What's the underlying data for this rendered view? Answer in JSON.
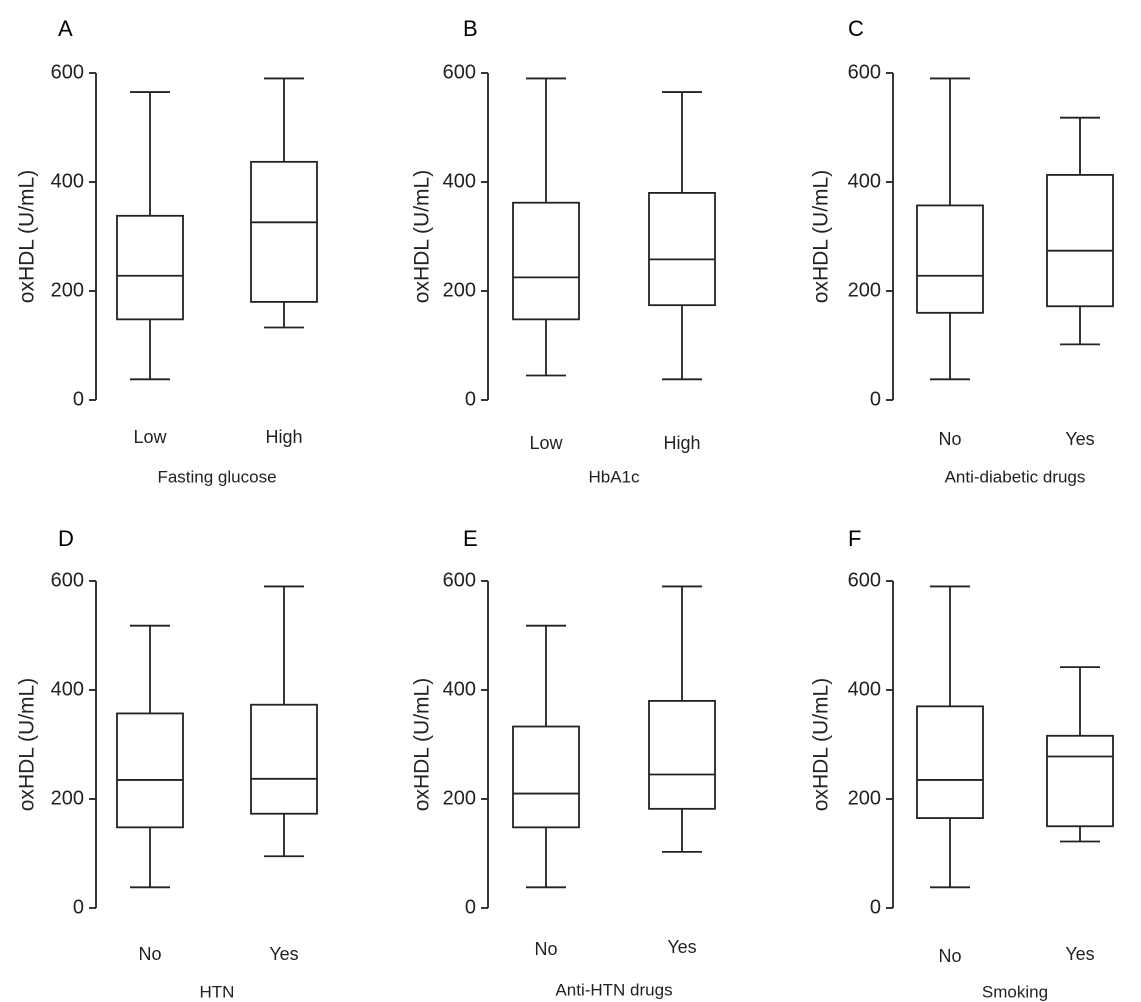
{
  "chart_data": [
    {
      "type": "box",
      "letter": "A",
      "ylabel": "oxHDL (U/mL)",
      "xlabel": "Fasting glucose",
      "ylim": [
        0,
        600
      ],
      "yticks": [
        0,
        200,
        400,
        600
      ],
      "groups": [
        {
          "label": "Low",
          "min": 38,
          "q1": 148,
          "median": 228,
          "q3": 338,
          "max": 565
        },
        {
          "label": "High",
          "min": 133,
          "q1": 180,
          "median": 326,
          "q3": 437,
          "max": 590
        }
      ]
    },
    {
      "type": "box",
      "letter": "B",
      "ylabel": "oxHDL (U/mL)",
      "xlabel": "HbA1c",
      "ylim": [
        0,
        600
      ],
      "yticks": [
        0,
        200,
        400,
        600
      ],
      "groups": [
        {
          "label": "Low",
          "min": 45,
          "q1": 148,
          "median": 225,
          "q3": 362,
          "max": 590
        },
        {
          "label": "High",
          "min": 38,
          "q1": 174,
          "median": 258,
          "q3": 380,
          "max": 565
        }
      ]
    },
    {
      "type": "box",
      "letter": "C",
      "ylabel": "oxHDL (U/mL)",
      "xlabel": "Anti-diabetic drugs",
      "ylim": [
        0,
        600
      ],
      "yticks": [
        0,
        200,
        400,
        600
      ],
      "groups": [
        {
          "label": "No",
          "min": 38,
          "q1": 160,
          "median": 228,
          "q3": 357,
          "max": 590
        },
        {
          "label": "Yes",
          "min": 102,
          "q1": 172,
          "median": 274,
          "q3": 413,
          "max": 518
        }
      ]
    },
    {
      "type": "box",
      "letter": "D",
      "ylabel": "oxHDL (U/mL)",
      "xlabel": "HTN",
      "ylim": [
        0,
        600
      ],
      "yticks": [
        0,
        200,
        400,
        600
      ],
      "groups": [
        {
          "label": "No",
          "min": 38,
          "q1": 148,
          "median": 235,
          "q3": 357,
          "max": 518
        },
        {
          "label": "Yes",
          "min": 95,
          "q1": 173,
          "median": 237,
          "q3": 373,
          "max": 590
        }
      ]
    },
    {
      "type": "box",
      "letter": "E",
      "ylabel": "oxHDL (U/mL)",
      "xlabel": "Anti-HTN drugs",
      "ylim": [
        0,
        600
      ],
      "yticks": [
        0,
        200,
        400,
        600
      ],
      "groups": [
        {
          "label": "No",
          "min": 38,
          "q1": 148,
          "median": 210,
          "q3": 333,
          "max": 518
        },
        {
          "label": "Yes",
          "min": 103,
          "q1": 182,
          "median": 245,
          "q3": 380,
          "max": 590
        }
      ]
    },
    {
      "type": "box",
      "letter": "F",
      "ylabel": "oxHDL (U/mL)",
      "xlabel": "Smoking",
      "ylim": [
        0,
        600
      ],
      "yticks": [
        0,
        200,
        400,
        600
      ],
      "groups": [
        {
          "label": "No",
          "min": 38,
          "q1": 165,
          "median": 235,
          "q3": 370,
          "max": 590
        },
        {
          "label": "Yes",
          "min": 122,
          "q1": 150,
          "median": 278,
          "q3": 316,
          "max": 442
        }
      ]
    }
  ]
}
